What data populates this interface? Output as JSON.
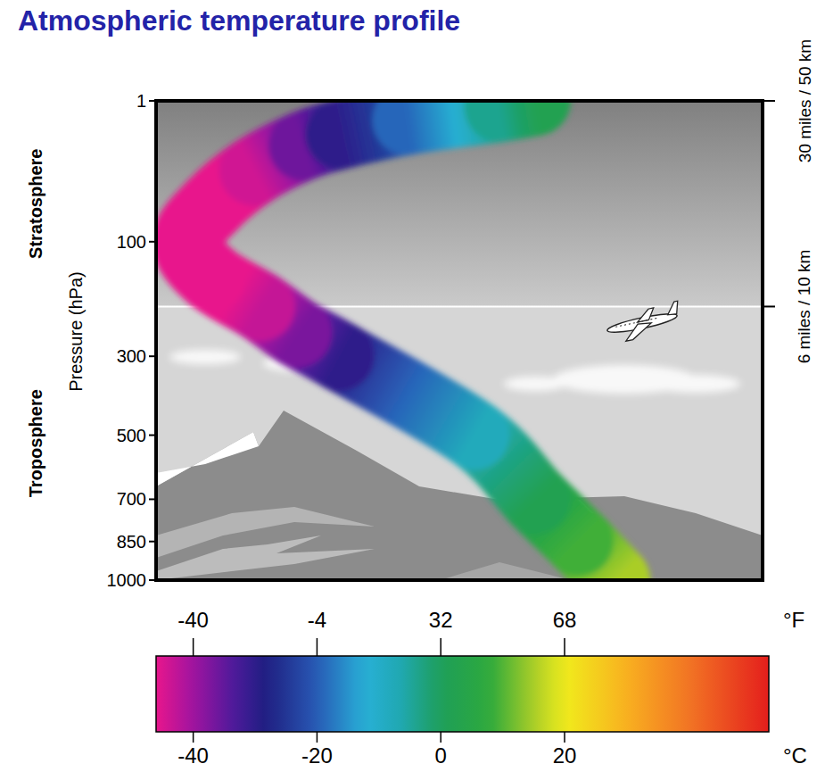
{
  "chart_data": {
    "type": "line",
    "title": "Atmospheric temperature profile",
    "y_label": "Pressure (hPa)",
    "orientation": "horizontal",
    "tick_labels": "y",
    "x": [
      1000,
      850,
      700,
      500,
      300,
      250,
      200,
      150,
      100,
      60,
      30,
      15,
      10,
      5,
      2,
      1
    ],
    "values": [
      15,
      9,
      2,
      -8,
      -30,
      -37,
      -43,
      -51,
      -55,
      -51,
      -44,
      -36,
      -30,
      -19,
      -4,
      2
    ],
    "xlim": [
      -60,
      39
    ],
    "ylim": [
      1000,
      1
    ],
    "yticks": [
      1,
      100,
      300,
      500,
      700,
      850,
      1000
    ],
    "y2lim": [
      1000,
      1
    ],
    "y2ticks": [
      {
        "value": 200,
        "label": "6 miles / 10 km"
      },
      {
        "value": 1,
        "label": "30 miles / 50 km"
      }
    ],
    "layers": [
      {
        "name": "Stratosphere",
        "top": 1,
        "bottom": 200
      },
      {
        "name": "Troposphere",
        "top": 200,
        "bottom": 1000
      }
    ],
    "colorbar": {
      "range": [
        -46,
        53
      ],
      "ticks": [
        -40,
        -20,
        0,
        20
      ],
      "label": "°C",
      "ticks_f": [
        -40,
        {
          "value": -20,
          "label": "-4"
        },
        {
          "value": 0,
          "label": "32"
        },
        {
          "value": 20,
          "label": "68"
        }
      ],
      "label_f": "°F"
    }
  }
}
